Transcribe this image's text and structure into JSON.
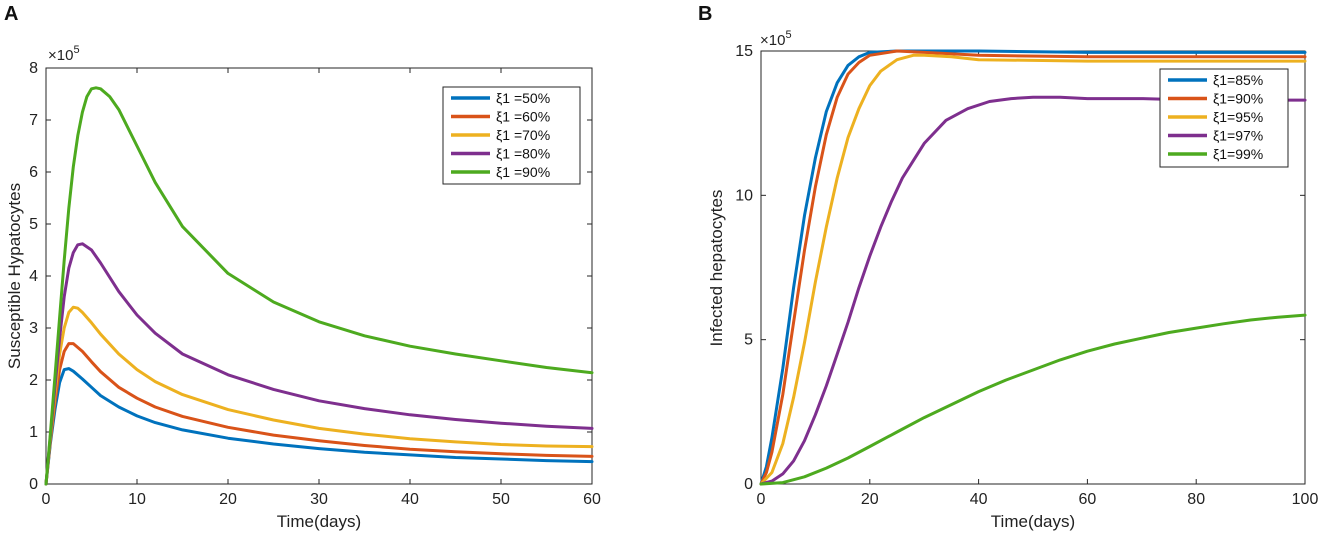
{
  "panels": {
    "a": {
      "label": "A"
    },
    "b": {
      "label": "B"
    }
  },
  "chart_data": [
    {
      "type": "line",
      "panel": "A",
      "xlabel": "Time(days)",
      "ylabel": "Susceptible Hypatocytes",
      "y_multiplier": "×10",
      "y_exponent": "5",
      "xlim": [
        0,
        60
      ],
      "ylim": [
        0,
        8
      ],
      "xticks": [
        0,
        10,
        20,
        30,
        40,
        50,
        60
      ],
      "yticks": [
        0,
        1,
        2,
        3,
        4,
        5,
        6,
        7,
        8
      ],
      "legend_position": "top-right",
      "series": [
        {
          "name": "ξ1 =50%",
          "color": "#0072BD",
          "points": [
            [
              0,
              0
            ],
            [
              0.5,
              0.8
            ],
            [
              1,
              1.45
            ],
            [
              1.5,
              1.95
            ],
            [
              2,
              2.2
            ],
            [
              2.5,
              2.22
            ],
            [
              3,
              2.17
            ],
            [
              4,
              2.02
            ],
            [
              5,
              1.86
            ],
            [
              6,
              1.7
            ],
            [
              8,
              1.48
            ],
            [
              10,
              1.31
            ],
            [
              12,
              1.18
            ],
            [
              15,
              1.04
            ],
            [
              20,
              0.88
            ],
            [
              25,
              0.77
            ],
            [
              30,
              0.68
            ],
            [
              35,
              0.61
            ],
            [
              40,
              0.56
            ],
            [
              45,
              0.51
            ],
            [
              50,
              0.48
            ],
            [
              55,
              0.45
            ],
            [
              60,
              0.43
            ]
          ]
        },
        {
          "name": "ξ1 =60%",
          "color": "#D95319",
          "points": [
            [
              0,
              0
            ],
            [
              0.5,
              0.85
            ],
            [
              1,
              1.6
            ],
            [
              1.5,
              2.2
            ],
            [
              2,
              2.55
            ],
            [
              2.5,
              2.7
            ],
            [
              3,
              2.7
            ],
            [
              4,
              2.55
            ],
            [
              5,
              2.35
            ],
            [
              6,
              2.16
            ],
            [
              8,
              1.86
            ],
            [
              10,
              1.65
            ],
            [
              12,
              1.48
            ],
            [
              15,
              1.3
            ],
            [
              20,
              1.09
            ],
            [
              25,
              0.94
            ],
            [
              30,
              0.83
            ],
            [
              35,
              0.74
            ],
            [
              40,
              0.67
            ],
            [
              45,
              0.62
            ],
            [
              50,
              0.58
            ],
            [
              55,
              0.55
            ],
            [
              60,
              0.53
            ]
          ]
        },
        {
          "name": "ξ1 =70%",
          "color": "#EDB120",
          "points": [
            [
              0,
              0
            ],
            [
              0.5,
              0.9
            ],
            [
              1,
              1.75
            ],
            [
              1.5,
              2.5
            ],
            [
              2,
              3.0
            ],
            [
              2.5,
              3.3
            ],
            [
              3,
              3.4
            ],
            [
              3.5,
              3.38
            ],
            [
              4,
              3.3
            ],
            [
              5,
              3.1
            ],
            [
              6,
              2.88
            ],
            [
              8,
              2.5
            ],
            [
              10,
              2.2
            ],
            [
              12,
              1.97
            ],
            [
              15,
              1.72
            ],
            [
              20,
              1.43
            ],
            [
              25,
              1.23
            ],
            [
              30,
              1.07
            ],
            [
              35,
              0.96
            ],
            [
              40,
              0.87
            ],
            [
              45,
              0.81
            ],
            [
              50,
              0.76
            ],
            [
              55,
              0.73
            ],
            [
              60,
              0.72
            ]
          ]
        },
        {
          "name": "ξ1 =80%",
          "color": "#7E2F8E",
          "points": [
            [
              0,
              0
            ],
            [
              0.5,
              0.95
            ],
            [
              1,
              1.9
            ],
            [
              1.5,
              2.8
            ],
            [
              2,
              3.6
            ],
            [
              2.5,
              4.15
            ],
            [
              3,
              4.45
            ],
            [
              3.5,
              4.6
            ],
            [
              4,
              4.62
            ],
            [
              5,
              4.5
            ],
            [
              6,
              4.25
            ],
            [
              8,
              3.7
            ],
            [
              10,
              3.25
            ],
            [
              12,
              2.9
            ],
            [
              15,
              2.5
            ],
            [
              20,
              2.1
            ],
            [
              25,
              1.82
            ],
            [
              30,
              1.6
            ],
            [
              35,
              1.45
            ],
            [
              40,
              1.33
            ],
            [
              45,
              1.24
            ],
            [
              50,
              1.17
            ],
            [
              55,
              1.11
            ],
            [
              60,
              1.07
            ]
          ]
        },
        {
          "name": "ξ1 =90%",
          "color": "#4DAA1F",
          "points": [
            [
              0,
              0
            ],
            [
              0.5,
              1.0
            ],
            [
              1,
              2.1
            ],
            [
              1.5,
              3.2
            ],
            [
              2,
              4.3
            ],
            [
              2.5,
              5.3
            ],
            [
              3,
              6.1
            ],
            [
              3.5,
              6.7
            ],
            [
              4,
              7.15
            ],
            [
              4.5,
              7.45
            ],
            [
              5,
              7.6
            ],
            [
              5.5,
              7.62
            ],
            [
              6,
              7.6
            ],
            [
              7,
              7.45
            ],
            [
              8,
              7.2
            ],
            [
              10,
              6.5
            ],
            [
              12,
              5.8
            ],
            [
              15,
              4.95
            ],
            [
              20,
              4.05
            ],
            [
              25,
              3.5
            ],
            [
              30,
              3.12
            ],
            [
              35,
              2.85
            ],
            [
              40,
              2.65
            ],
            [
              45,
              2.5
            ],
            [
              50,
              2.37
            ],
            [
              55,
              2.24
            ],
            [
              60,
              2.14
            ]
          ]
        }
      ]
    },
    {
      "type": "line",
      "panel": "B",
      "xlabel": "Time(days)",
      "ylabel": "Infected hepatocytes",
      "y_multiplier": "×10",
      "y_exponent": "5",
      "xlim": [
        0,
        100
      ],
      "ylim": [
        0,
        15
      ],
      "xticks": [
        0,
        20,
        40,
        60,
        80,
        100
      ],
      "yticks": [
        0,
        5,
        10,
        15
      ],
      "legend_position": "top-right",
      "series": [
        {
          "name": "ξ1=85%",
          "color": "#0072BD",
          "points": [
            [
              0,
              0
            ],
            [
              1,
              0.6
            ],
            [
              2,
              1.6
            ],
            [
              4,
              4.0
            ],
            [
              6,
              6.8
            ],
            [
              8,
              9.3
            ],
            [
              10,
              11.3
            ],
            [
              12,
              12.9
            ],
            [
              14,
              13.9
            ],
            [
              16,
              14.5
            ],
            [
              18,
              14.8
            ],
            [
              20,
              14.95
            ],
            [
              25,
              15.0
            ],
            [
              30,
              15.0
            ],
            [
              40,
              15.0
            ],
            [
              60,
              14.95
            ],
            [
              80,
              14.95
            ],
            [
              100,
              14.95
            ]
          ]
        },
        {
          "name": "ξ1=90%",
          "color": "#D95319",
          "points": [
            [
              0,
              0
            ],
            [
              1,
              0.4
            ],
            [
              2,
              1.1
            ],
            [
              4,
              3.1
            ],
            [
              6,
              5.6
            ],
            [
              8,
              8.1
            ],
            [
              10,
              10.3
            ],
            [
              12,
              12.1
            ],
            [
              14,
              13.4
            ],
            [
              16,
              14.2
            ],
            [
              18,
              14.6
            ],
            [
              20,
              14.85
            ],
            [
              25,
              15.0
            ],
            [
              30,
              14.95
            ],
            [
              40,
              14.85
            ],
            [
              60,
              14.8
            ],
            [
              80,
              14.8
            ],
            [
              100,
              14.8
            ]
          ]
        },
        {
          "name": "ξ1=95%",
          "color": "#EDB120",
          "points": [
            [
              0,
              0
            ],
            [
              2,
              0.4
            ],
            [
              4,
              1.4
            ],
            [
              6,
              3.0
            ],
            [
              8,
              4.9
            ],
            [
              10,
              7.0
            ],
            [
              12,
              8.9
            ],
            [
              14,
              10.6
            ],
            [
              16,
              12.0
            ],
            [
              18,
              13.0
            ],
            [
              20,
              13.8
            ],
            [
              22,
              14.3
            ],
            [
              25,
              14.7
            ],
            [
              28,
              14.85
            ],
            [
              30,
              14.85
            ],
            [
              35,
              14.8
            ],
            [
              40,
              14.7
            ],
            [
              60,
              14.65
            ],
            [
              80,
              14.65
            ],
            [
              100,
              14.65
            ]
          ]
        },
        {
          "name": "ξ1=97%",
          "color": "#7E2F8E",
          "points": [
            [
              0,
              0
            ],
            [
              2,
              0.1
            ],
            [
              4,
              0.35
            ],
            [
              6,
              0.8
            ],
            [
              8,
              1.5
            ],
            [
              10,
              2.4
            ],
            [
              12,
              3.4
            ],
            [
              14,
              4.5
            ],
            [
              16,
              5.6
            ],
            [
              18,
              6.8
            ],
            [
              20,
              7.9
            ],
            [
              22,
              8.9
            ],
            [
              24,
              9.8
            ],
            [
              26,
              10.6
            ],
            [
              28,
              11.2
            ],
            [
              30,
              11.8
            ],
            [
              34,
              12.6
            ],
            [
              38,
              13.0
            ],
            [
              42,
              13.25
            ],
            [
              46,
              13.35
            ],
            [
              50,
              13.4
            ],
            [
              55,
              13.4
            ],
            [
              60,
              13.35
            ],
            [
              70,
              13.35
            ],
            [
              80,
              13.3
            ],
            [
              90,
              13.3
            ],
            [
              100,
              13.3
            ]
          ]
        },
        {
          "name": "ξ1=99%",
          "color": "#4DAA1F",
          "points": [
            [
              0,
              0
            ],
            [
              4,
              0.05
            ],
            [
              8,
              0.25
            ],
            [
              12,
              0.55
            ],
            [
              16,
              0.9
            ],
            [
              20,
              1.3
            ],
            [
              25,
              1.8
            ],
            [
              30,
              2.3
            ],
            [
              35,
              2.75
            ],
            [
              40,
              3.2
            ],
            [
              45,
              3.6
            ],
            [
              50,
              3.95
            ],
            [
              55,
              4.3
            ],
            [
              60,
              4.6
            ],
            [
              65,
              4.85
            ],
            [
              70,
              5.05
            ],
            [
              75,
              5.25
            ],
            [
              80,
              5.4
            ],
            [
              85,
              5.55
            ],
            [
              90,
              5.68
            ],
            [
              95,
              5.78
            ],
            [
              100,
              5.85
            ]
          ]
        }
      ]
    }
  ]
}
